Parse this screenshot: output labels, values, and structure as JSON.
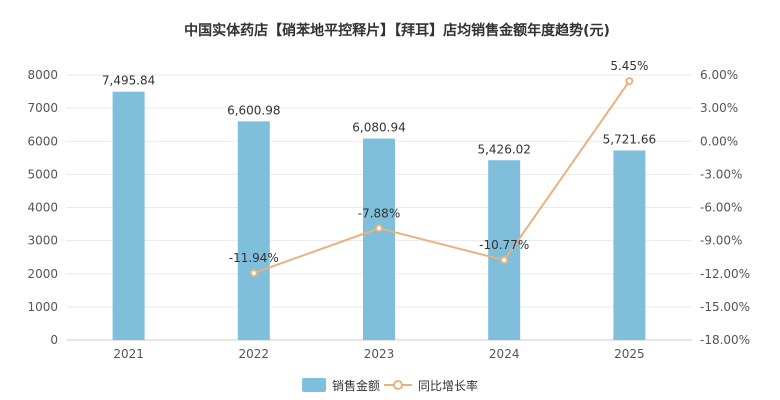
{
  "chart_data": {
    "type": "bar",
    "title": "中国实体药店【硝苯地平控释片】【拜耳】店均销售金额年度趋势(元)",
    "categories": [
      "2021",
      "2022",
      "2023",
      "2024",
      "2025"
    ],
    "series": [
      {
        "name": "销售金额",
        "type": "bar",
        "axis": "left",
        "color": "#7fbfdc",
        "values": [
          7495.84,
          6600.98,
          6080.94,
          5426.02,
          5721.66
        ],
        "labels": [
          "7,495.84",
          "6,600.98",
          "6,080.94",
          "5,426.02",
          "5,721.66"
        ]
      },
      {
        "name": "同比增长率",
        "type": "line",
        "axis": "right",
        "color": "#e8b27e",
        "values": [
          null,
          -11.94,
          -7.88,
          -10.77,
          5.45
        ],
        "labels": [
          "",
          "-11.94%",
          "-7.88%",
          "-10.77%",
          "5.45%"
        ]
      }
    ],
    "y_left": {
      "min": 0,
      "max": 8000,
      "ticks": [
        "0",
        "1000",
        "2000",
        "3000",
        "4000",
        "5000",
        "6000",
        "7000",
        "8000"
      ]
    },
    "y_right": {
      "min": -18,
      "max": 6,
      "ticks": [
        "-18.00%",
        "-15.00%",
        "-12.00%",
        "-9.00%",
        "-6.00%",
        "-3.00%",
        "0.00%",
        "3.00%",
        "6.00%"
      ]
    },
    "grid": true,
    "legend": "bottom-center"
  }
}
